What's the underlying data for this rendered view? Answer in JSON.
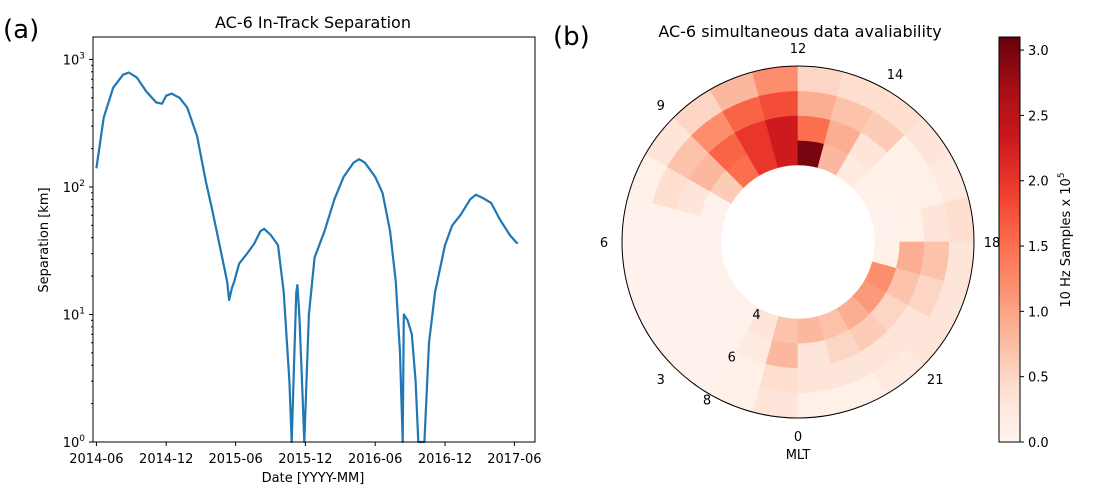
{
  "chart_data": [
    {
      "type": "line",
      "panel_label": "(a)",
      "title": "AC-6 In-Track Separation",
      "xlabel": "Date [YYYY-MM]",
      "ylabel": "Separation [km]",
      "x_ticks": [
        "2014-06",
        "2014-12",
        "2015-06",
        "2015-12",
        "2016-06",
        "2016-12",
        "2017-06"
      ],
      "y_scale": "log",
      "ylim": [
        1,
        1500
      ],
      "y_tick_values": [
        1,
        10,
        100,
        1000
      ],
      "y_tick_labels": [
        {
          "base": "10",
          "exp": "0"
        },
        {
          "base": "10",
          "exp": "1"
        },
        {
          "base": "10",
          "exp": "2"
        },
        {
          "base": "10",
          "exp": "3"
        }
      ],
      "xlim": [
        "2014-05-23",
        "2017-07-25"
      ],
      "series": [
        {
          "color": "#1f77b4",
          "points": [
            [
              "2014-06-01",
              140
            ],
            [
              "2014-06-20",
              350
            ],
            [
              "2014-07-15",
              600
            ],
            [
              "2014-08-10",
              760
            ],
            [
              "2014-08-25",
              790
            ],
            [
              "2014-09-15",
              720
            ],
            [
              "2014-10-10",
              560
            ],
            [
              "2014-11-05",
              460
            ],
            [
              "2014-11-20",
              450
            ],
            [
              "2014-12-01",
              520
            ],
            [
              "2014-12-15",
              540
            ],
            [
              "2015-01-05",
              500
            ],
            [
              "2015-01-25",
              420
            ],
            [
              "2015-02-20",
              250
            ],
            [
              "2015-03-15",
              110
            ],
            [
              "2015-04-01",
              65
            ],
            [
              "2015-04-20",
              35
            ],
            [
              "2015-05-10",
              18
            ],
            [
              "2015-05-15",
              13
            ],
            [
              "2015-05-22",
              16
            ],
            [
              "2015-05-28",
              18
            ],
            [
              "2015-06-10",
              25
            ],
            [
              "2015-07-01",
              30
            ],
            [
              "2015-07-20",
              36
            ],
            [
              "2015-08-05",
              45
            ],
            [
              "2015-08-15",
              47
            ],
            [
              "2015-09-01",
              42
            ],
            [
              "2015-09-20",
              35
            ],
            [
              "2015-10-05",
              15
            ],
            [
              "2015-10-20",
              3
            ],
            [
              "2015-10-26",
              1
            ],
            [
              "2015-11-01",
              4
            ],
            [
              "2015-11-07",
              15
            ],
            [
              "2015-11-10",
              17
            ],
            [
              "2015-11-15",
              10
            ],
            [
              "2015-11-22",
              3
            ],
            [
              "2015-11-28",
              1
            ],
            [
              "2015-12-10",
              10
            ],
            [
              "2015-12-25",
              28
            ],
            [
              "2016-01-20",
              45
            ],
            [
              "2016-02-15",
              80
            ],
            [
              "2016-03-10",
              120
            ],
            [
              "2016-04-05",
              155
            ],
            [
              "2016-04-20",
              165
            ],
            [
              "2016-05-05",
              155
            ],
            [
              "2016-06-01",
              120
            ],
            [
              "2016-06-20",
              90
            ],
            [
              "2016-07-10",
              45
            ],
            [
              "2016-07-25",
              18
            ],
            [
              "2016-08-05",
              5
            ],
            [
              "2016-08-12",
              1
            ],
            [
              "2016-08-15",
              10
            ],
            [
              "2016-08-25",
              9
            ],
            [
              "2016-09-05",
              7
            ],
            [
              "2016-09-15",
              3
            ],
            [
              "2016-09-22",
              1
            ],
            [
              "2016-10-08",
              1
            ],
            [
              "2016-10-20",
              6
            ],
            [
              "2016-11-05",
              15
            ],
            [
              "2016-12-01",
              35
            ],
            [
              "2016-12-20",
              50
            ],
            [
              "2017-01-10",
              60
            ],
            [
              "2017-02-05",
              80
            ],
            [
              "2017-02-20",
              87
            ],
            [
              "2017-03-10",
              82
            ],
            [
              "2017-04-01",
              75
            ],
            [
              "2017-04-25",
              55
            ],
            [
              "2017-05-20",
              42
            ],
            [
              "2017-06-05",
              37
            ],
            [
              "2017-06-10",
              36
            ]
          ]
        }
      ]
    },
    {
      "type": "heatmap",
      "subtype": "polar",
      "panel_label": "(b)",
      "title": "AC-6 simultaneous data avaliability",
      "xlabel": "MLT",
      "mlt_labels": [
        {
          "text": "12",
          "mlt": 12
        },
        {
          "text": "9",
          "mlt": 9
        },
        {
          "text": "6",
          "mlt": 6
        },
        {
          "text": "3",
          "mlt": 3
        },
        {
          "text": "0",
          "mlt": 0
        },
        {
          "text": "21",
          "mlt": 21
        },
        {
          "text": "18",
          "mlt": 18
        },
        {
          "text": "14",
          "mlt": 14
        }
      ],
      "radial_labels": [
        {
          "text": "4",
          "mlt": 2
        },
        {
          "text": "6",
          "mlt": 2
        },
        {
          "text": "8",
          "mlt": 2
        }
      ],
      "l_shell_edges": [
        4,
        5,
        6,
        7,
        8
      ],
      "mlt_bins": [
        "0-1",
        "1-2",
        "2-3",
        "3-4",
        "4-5",
        "5-6",
        "6-7",
        "7-8",
        "8-9",
        "9-10",
        "10-11",
        "11-12",
        "12-13",
        "13-14",
        "14-15",
        "15-16",
        "16-17",
        "17-18",
        "18-19",
        "19-20",
        "20-21",
        "21-22",
        "22-23",
        "23-24"
      ],
      "values": [
        [
          0.7,
          0.3,
          0.05,
          0.05,
          0.05,
          0.05,
          0.05,
          0.05,
          0.6,
          1.5,
          2.0,
          2.3,
          3.0,
          0.8,
          0.2,
          0.1,
          0.05,
          0.05,
          0.1,
          1.2,
          1.1,
          0.9,
          0.7,
          0.8
        ],
        [
          0.8,
          0.2,
          0.05,
          0.05,
          0.05,
          0.05,
          0.05,
          0.3,
          0.8,
          1.6,
          2.0,
          2.3,
          1.5,
          0.9,
          0.3,
          0.1,
          0.1,
          0.1,
          0.9,
          0.7,
          0.5,
          0.6,
          0.5,
          0.3
        ],
        [
          0.4,
          0.1,
          0.05,
          0.05,
          0.05,
          0.05,
          0.05,
          0.4,
          0.7,
          1.2,
          1.6,
          1.8,
          0.9,
          0.7,
          0.6,
          0.1,
          0.1,
          0.3,
          0.7,
          0.5,
          0.3,
          0.3,
          0.3,
          0.3
        ],
        [
          0.3,
          0.1,
          0.05,
          0.05,
          0.05,
          0.05,
          0.05,
          0.1,
          0.3,
          0.5,
          0.8,
          1.2,
          0.5,
          0.4,
          0.4,
          0.3,
          0.2,
          0.4,
          0.3,
          0.3,
          0.3,
          0.2,
          0.1,
          0.1
        ]
      ],
      "colorbar": {
        "label_base": "10 Hz Samples x 10",
        "label_exp": "5",
        "min": 0,
        "max": 3.1,
        "ticks": [
          "0.0",
          "0.5",
          "1.0",
          "1.5",
          "2.0",
          "2.5",
          "3.0"
        ],
        "tick_values": [
          0,
          0.5,
          1.0,
          1.5,
          2.0,
          2.5,
          3.0
        ],
        "colormap": "Reds"
      }
    }
  ]
}
